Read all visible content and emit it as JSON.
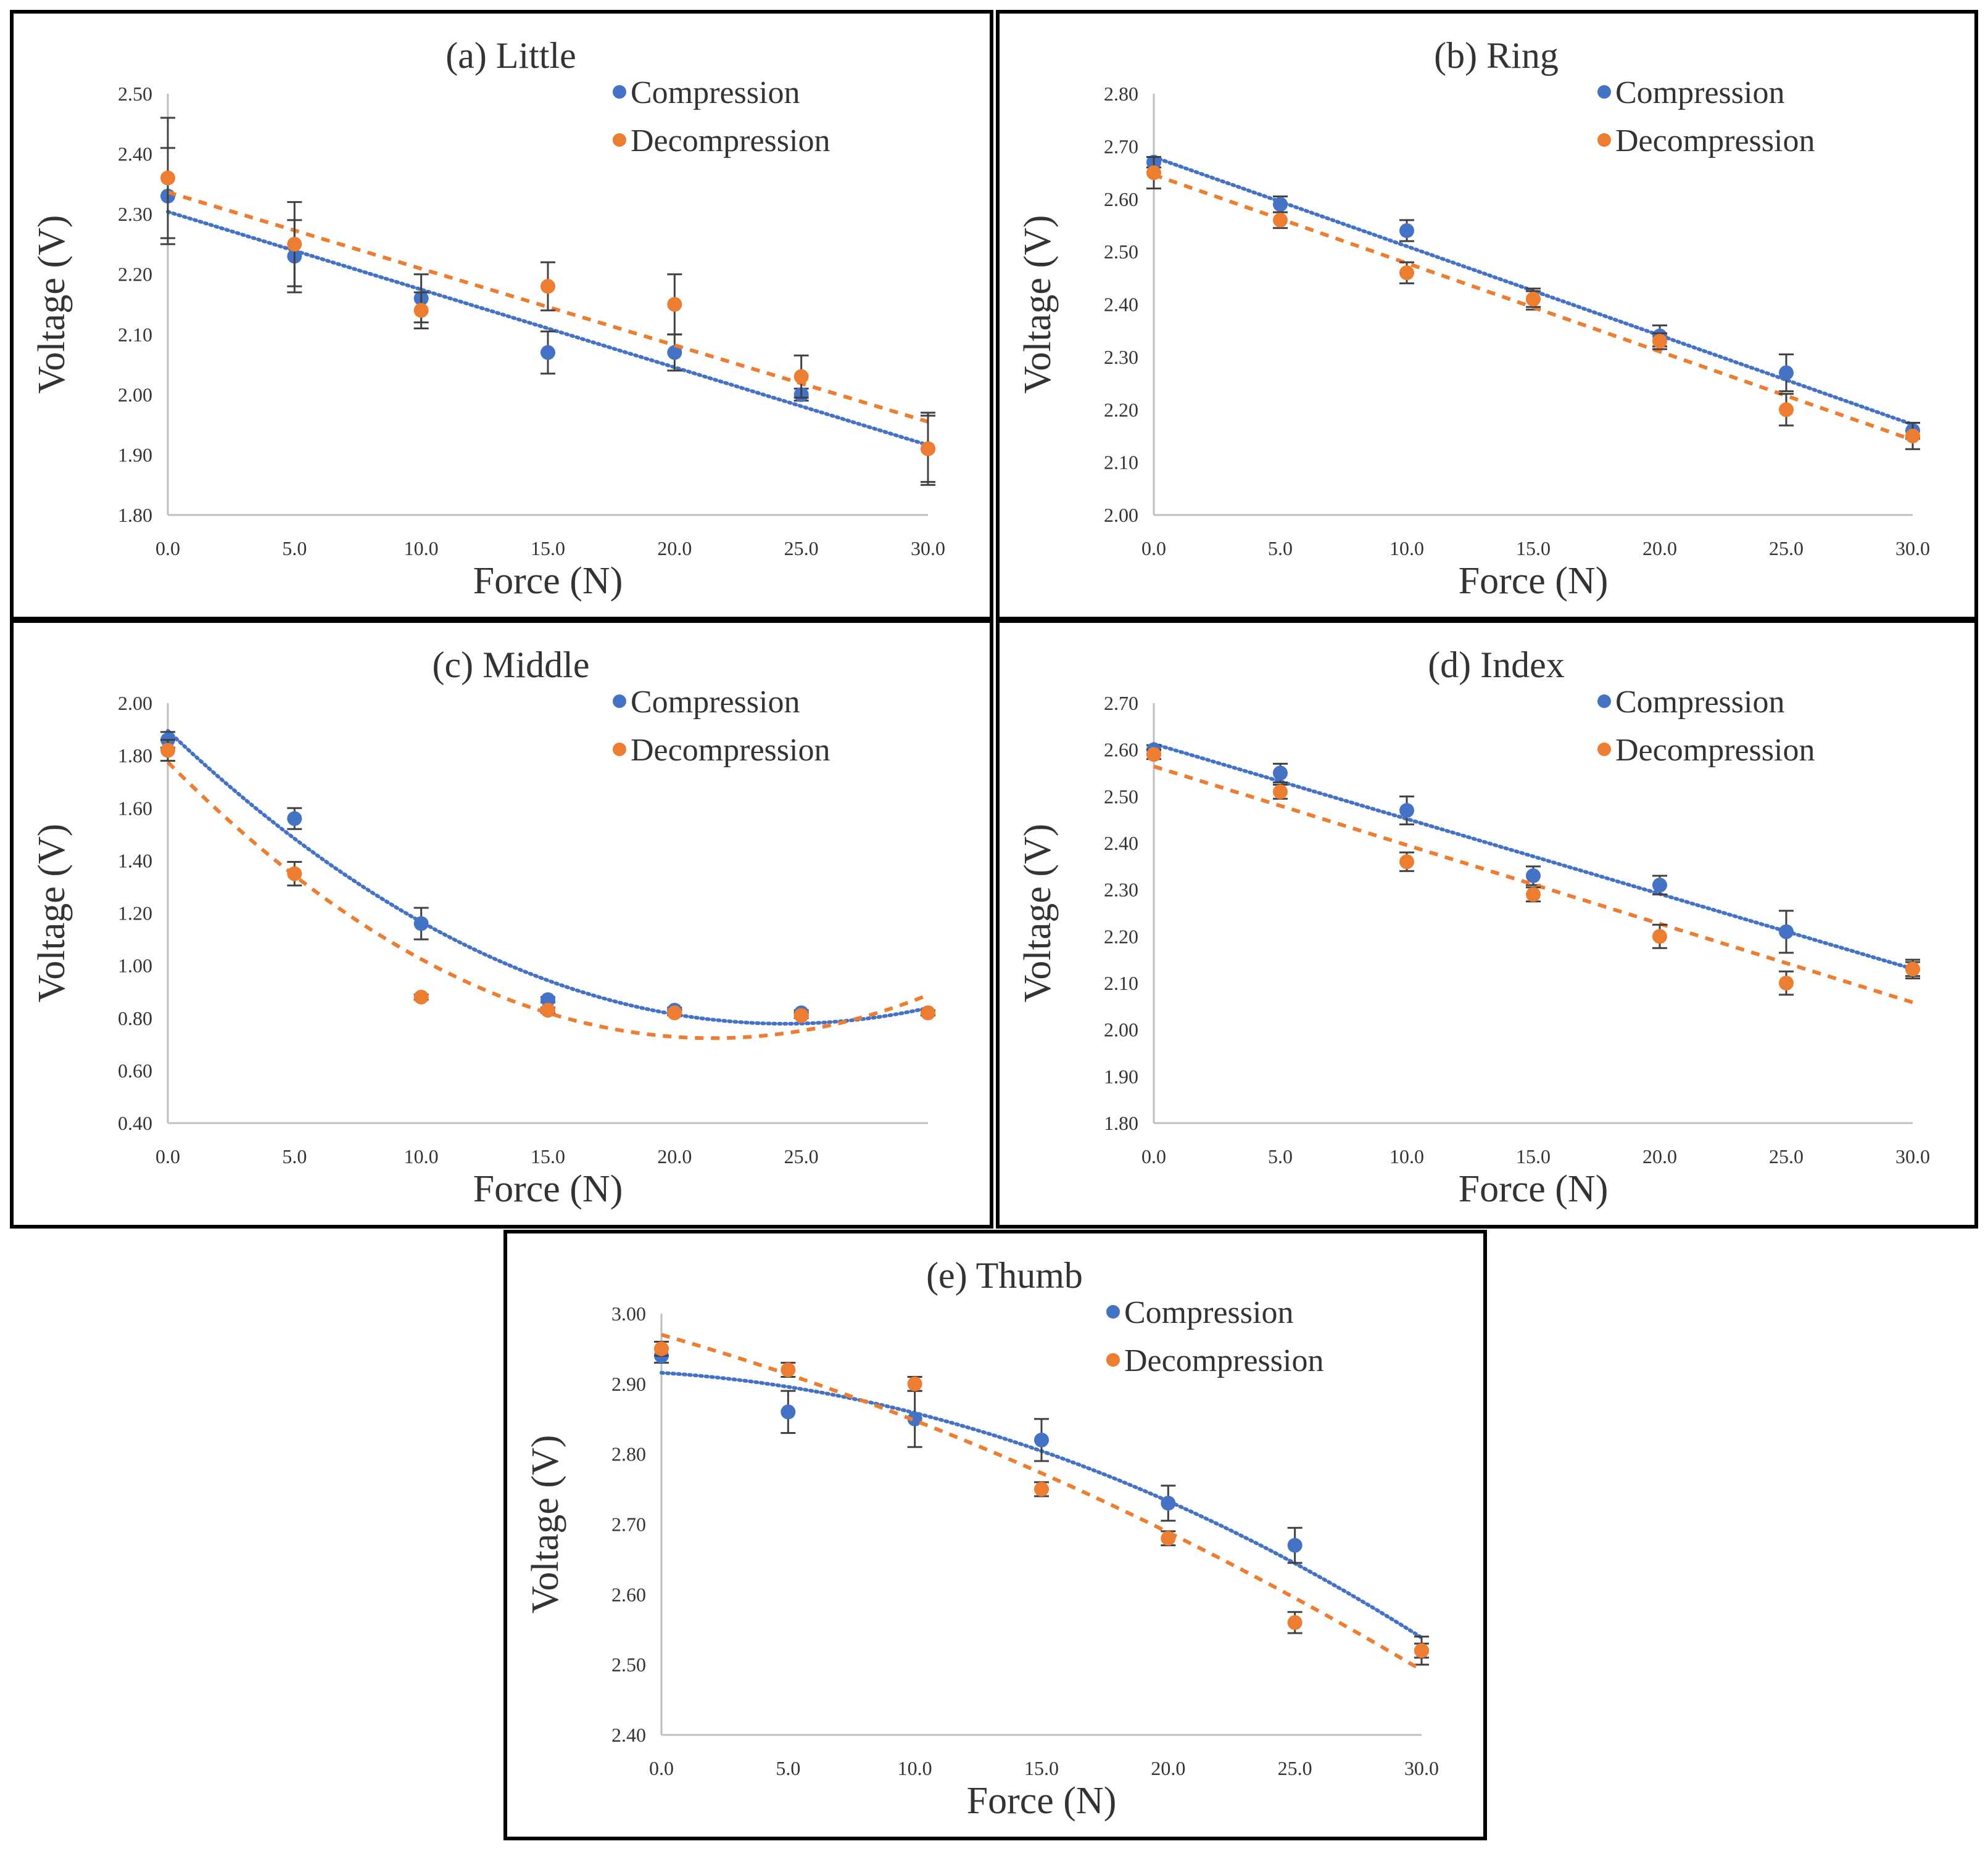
{
  "colors": {
    "compression": "#4472C4",
    "decompression": "#ED7D31",
    "axis": "#BFBFBF",
    "error_bar": "#404040"
  },
  "chart_data": [
    {
      "type": "scatter",
      "title": "(a) Little",
      "xlabel": "Force (N)",
      "ylabel": "Voltage (V)",
      "xlim": [
        0,
        30
      ],
      "xticks": [
        "0.0",
        "5.0",
        "10.0",
        "15.0",
        "20.0",
        "25.0",
        "30.0"
      ],
      "ylim": [
        1.8,
        2.5
      ],
      "yticks": [
        "1.80",
        "1.90",
        "2.00",
        "2.10",
        "2.20",
        "2.30",
        "2.40",
        "2.50"
      ],
      "series": [
        {
          "name": "Compression",
          "x": [
            0,
            5,
            10,
            15,
            20,
            25,
            30
          ],
          "y": [
            2.33,
            2.23,
            2.16,
            2.07,
            2.07,
            2.0,
            1.91
          ],
          "err": [
            0.08,
            0.06,
            0.04,
            0.035,
            0.03,
            0.01,
            0.06
          ],
          "trend": "linear"
        },
        {
          "name": "Decompression",
          "x": [
            0,
            5,
            10,
            15,
            20,
            25,
            30
          ],
          "y": [
            2.36,
            2.25,
            2.14,
            2.18,
            2.15,
            2.03,
            1.91
          ],
          "err": [
            0.1,
            0.07,
            0.03,
            0.04,
            0.05,
            0.035,
            0.055
          ],
          "trend": "linear"
        }
      ]
    },
    {
      "type": "scatter",
      "title": "(b) Ring",
      "xlabel": "Force (N)",
      "ylabel": "Voltage (V)",
      "xlim": [
        0,
        30
      ],
      "xticks": [
        "0.0",
        "5.0",
        "10.0",
        "15.0",
        "20.0",
        "25.0",
        "30.0"
      ],
      "ylim": [
        2.0,
        2.8
      ],
      "yticks": [
        "2.00",
        "2.10",
        "2.20",
        "2.30",
        "2.40",
        "2.50",
        "2.60",
        "2.70",
        "2.80"
      ],
      "series": [
        {
          "name": "Compression",
          "x": [
            0,
            5,
            10,
            15,
            20,
            25,
            30
          ],
          "y": [
            2.67,
            2.59,
            2.54,
            2.41,
            2.34,
            2.27,
            2.16
          ],
          "err": [
            0.01,
            0.015,
            0.02,
            0.02,
            0.02,
            0.035,
            0.015
          ],
          "trend": "linear"
        },
        {
          "name": "Decompression",
          "x": [
            0,
            5,
            10,
            15,
            20,
            25,
            30
          ],
          "y": [
            2.65,
            2.56,
            2.46,
            2.41,
            2.33,
            2.2,
            2.15
          ],
          "err": [
            0.03,
            0.015,
            0.02,
            0.015,
            0.015,
            0.03,
            0.025
          ],
          "trend": "linear"
        }
      ]
    },
    {
      "type": "scatter",
      "title": "(c) Middle",
      "xlabel": "Force (N)",
      "ylabel": "Voltage (V)",
      "xlim": [
        0,
        30
      ],
      "xticks": [
        "0.0",
        "5.0",
        "10.0",
        "15.0",
        "20.0",
        "25.0"
      ],
      "ylim": [
        0.4,
        2.0
      ],
      "yticks": [
        "0.40",
        "0.60",
        "0.80",
        "1.00",
        "1.20",
        "1.40",
        "1.60",
        "1.80",
        "2.00"
      ],
      "series": [
        {
          "name": "Compression",
          "x": [
            0,
            5,
            10,
            15,
            20,
            25,
            30
          ],
          "y": [
            1.86,
            1.56,
            1.16,
            0.87,
            0.83,
            0.82,
            0.82
          ],
          "err": [
            0.03,
            0.04,
            0.06,
            0.01,
            0.01,
            0.01,
            0.01
          ],
          "trend": "poly2"
        },
        {
          "name": "Decompression",
          "x": [
            0,
            5,
            10,
            15,
            20,
            25,
            30
          ],
          "y": [
            1.82,
            1.35,
            0.88,
            0.83,
            0.82,
            0.81,
            0.82
          ],
          "err": [
            0.04,
            0.045,
            0.01,
            0.01,
            0.01,
            0.01,
            0.01
          ],
          "trend": "poly2"
        }
      ]
    },
    {
      "type": "scatter",
      "title": "(d) Index",
      "xlabel": "Force (N)",
      "ylabel": "Voltage (V)",
      "xlim": [
        0,
        30
      ],
      "xticks": [
        "0.0",
        "5.0",
        "10.0",
        "15.0",
        "20.0",
        "25.0",
        "30.0"
      ],
      "ylim": [
        1.8,
        2.7
      ],
      "yticks": [
        "1.80",
        "1.90",
        "2.00",
        "2.10",
        "2.20",
        "2.30",
        "2.40",
        "2.50",
        "2.60",
        "2.70"
      ],
      "series": [
        {
          "name": "Compression",
          "x": [
            0,
            5,
            10,
            15,
            20,
            25,
            30
          ],
          "y": [
            2.6,
            2.55,
            2.47,
            2.33,
            2.31,
            2.21,
            2.13
          ],
          "err": [
            0.01,
            0.02,
            0.03,
            0.02,
            0.02,
            0.045,
            0.02
          ],
          "trend": "linear"
        },
        {
          "name": "Decompression",
          "x": [
            0,
            5,
            10,
            15,
            20,
            25,
            30
          ],
          "y": [
            2.59,
            2.51,
            2.36,
            2.29,
            2.2,
            2.1,
            2.13
          ],
          "err": [
            0.01,
            0.015,
            0.02,
            0.015,
            0.025,
            0.025,
            0.015
          ],
          "trend": "linear"
        }
      ]
    },
    {
      "type": "scatter",
      "title": "(e) Thumb",
      "xlabel": "Force (N)",
      "ylabel": "Voltage (V)",
      "xlim": [
        0,
        30
      ],
      "xticks": [
        "0.0",
        "5.0",
        "10.0",
        "15.0",
        "20.0",
        "25.0",
        "30.0"
      ],
      "ylim": [
        2.4,
        3.0
      ],
      "yticks": [
        "2.40",
        "2.50",
        "2.60",
        "2.70",
        "2.80",
        "2.90",
        "3.00"
      ],
      "series": [
        {
          "name": "Compression",
          "x": [
            0,
            5,
            10,
            15,
            20,
            25,
            30
          ],
          "y": [
            2.94,
            2.86,
            2.85,
            2.82,
            2.73,
            2.67,
            2.52
          ],
          "err": [
            0.01,
            0.03,
            0.04,
            0.03,
            0.025,
            0.025,
            0.02
          ],
          "trend": "poly2"
        },
        {
          "name": "Decompression",
          "x": [
            0,
            5,
            10,
            15,
            20,
            25,
            30
          ],
          "y": [
            2.95,
            2.92,
            2.9,
            2.75,
            2.68,
            2.56,
            2.52
          ],
          "err": [
            0.01,
            0.01,
            0.01,
            0.01,
            0.01,
            0.015,
            0.01
          ],
          "trend": "poly2"
        }
      ]
    }
  ]
}
